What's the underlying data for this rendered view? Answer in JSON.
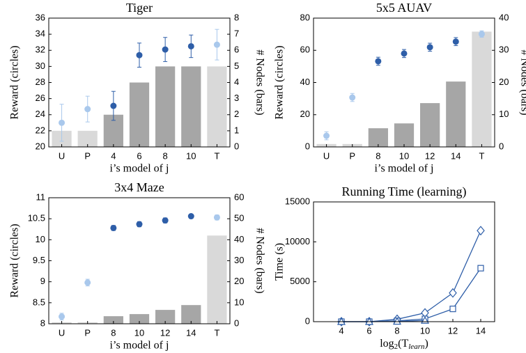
{
  "chart_data": [
    {
      "type": "combo",
      "title": "Tiger",
      "categories": [
        "U",
        "P",
        "4",
        "6",
        "8",
        "10",
        "T"
      ],
      "bars": {
        "axis": "y2",
        "values": [
          1,
          1,
          2,
          4,
          5,
          5,
          5
        ],
        "colors": [
          "#d9d9d9",
          "#d9d9d9",
          "#a6a6a6",
          "#a6a6a6",
          "#a6a6a6",
          "#a6a6a6",
          "#d9d9d9"
        ]
      },
      "points": {
        "values": [
          23.0,
          24.7,
          25.1,
          31.4,
          32.1,
          32.5,
          32.7
        ],
        "errors": [
          2.3,
          1.6,
          1.8,
          1.5,
          1.5,
          1.4,
          1.9
        ],
        "colors": [
          "#a9c8ec",
          "#a9c8ec",
          "#2e5ea8",
          "#2e5ea8",
          "#2e5ea8",
          "#2e5ea8",
          "#a9c8ec"
        ]
      },
      "ylim": [
        20,
        36
      ],
      "yticks": [
        20,
        22,
        24,
        26,
        28,
        30,
        32,
        34,
        36
      ],
      "y2lim": [
        0,
        8
      ],
      "y2ticks": [
        0,
        1,
        2,
        3,
        4,
        5,
        6,
        7,
        8
      ],
      "y_label": "Reward (circles)",
      "y2_label": "# Nodes (bars)",
      "x_label": "i’s model of j"
    },
    {
      "type": "combo",
      "title": "5x5 AUAV",
      "categories": [
        "U",
        "P",
        "8",
        "10",
        "12",
        "14",
        "T"
      ],
      "bars": {
        "axis": "y2",
        "values": [
          0.9,
          0.9,
          5.8,
          7.3,
          13.6,
          20.3,
          35.8
        ],
        "colors": [
          "#d9d9d9",
          "#d9d9d9",
          "#a6a6a6",
          "#a6a6a6",
          "#a6a6a6",
          "#a6a6a6",
          "#d9d9d9"
        ]
      },
      "points": {
        "values": [
          6.9,
          30.7,
          53.2,
          58.0,
          61.9,
          65.4,
          70.1
        ],
        "errors": [
          2.5,
          2.5,
          2.5,
          2.5,
          2.5,
          2.5,
          2.0
        ],
        "colors": [
          "#a9c8ec",
          "#a9c8ec",
          "#2e5ea8",
          "#2e5ea8",
          "#2e5ea8",
          "#2e5ea8",
          "#a9c8ec"
        ]
      },
      "ylim": [
        0,
        80
      ],
      "yticks": [
        0,
        20,
        40,
        60,
        80
      ],
      "y2lim": [
        0,
        40
      ],
      "y2ticks": [
        0,
        10,
        20,
        30,
        40
      ],
      "y_label": "Reward (circles)",
      "y2_label": "# Nodes (bars)",
      "x_label": "i’s model of j"
    },
    {
      "type": "combo",
      "title": "3x4 Maze",
      "categories": [
        "U",
        "P",
        "8",
        "10",
        "12",
        "14",
        "T"
      ],
      "bars": {
        "axis": "y2",
        "values": [
          0.7,
          0.7,
          3.6,
          4.6,
          6.6,
          8.9,
          42
        ],
        "colors": [
          "#d9d9d9",
          "#d9d9d9",
          "#a6a6a6",
          "#a6a6a6",
          "#a6a6a6",
          "#a6a6a6",
          "#d9d9d9"
        ]
      },
      "points": {
        "values": [
          8.17,
          8.98,
          10.28,
          10.37,
          10.46,
          10.56,
          10.53
        ],
        "errors": [
          0.08,
          0.08,
          0.06,
          0.06,
          0.06,
          0.05,
          0.06
        ],
        "colors": [
          "#a9c8ec",
          "#a9c8ec",
          "#2e5ea8",
          "#2e5ea8",
          "#2e5ea8",
          "#2e5ea8",
          "#a9c8ec"
        ]
      },
      "ylim": [
        8,
        11
      ],
      "yticks": [
        8,
        8.5,
        9,
        9.5,
        10,
        10.5,
        11
      ],
      "y2lim": [
        0,
        60
      ],
      "y2ticks": [
        0,
        10,
        20,
        30,
        40,
        50,
        60
      ],
      "y_label": "Reward (circles)",
      "y2_label": "# Nodes (bars)",
      "x_label": "i’s model of j"
    },
    {
      "type": "line",
      "title": "Running Time (learning)",
      "x": [
        4,
        6,
        8,
        10,
        12,
        14
      ],
      "series": [
        {
          "marker": "diamond",
          "color": "#2e5ea8",
          "values": [
            0,
            0,
            300,
            1100,
            3600,
            11400
          ]
        },
        {
          "marker": "square",
          "color": "#2e5ea8",
          "values": [
            0,
            0,
            100,
            350,
            1600,
            6700
          ]
        },
        {
          "marker": "triangle",
          "color": "#2e5ea8",
          "values": [
            0,
            0,
            30,
            150,
            null,
            null
          ]
        }
      ],
      "xlim": [
        2,
        15
      ],
      "xticks": [
        4,
        6,
        8,
        10,
        12,
        14
      ],
      "ylim": [
        0,
        15000
      ],
      "yticks": [
        0,
        5000,
        10000,
        15000
      ],
      "y_label": "Time (s)",
      "x_label_parts": [
        "log",
        "2",
        "(T",
        "learn",
        ")"
      ]
    }
  ]
}
